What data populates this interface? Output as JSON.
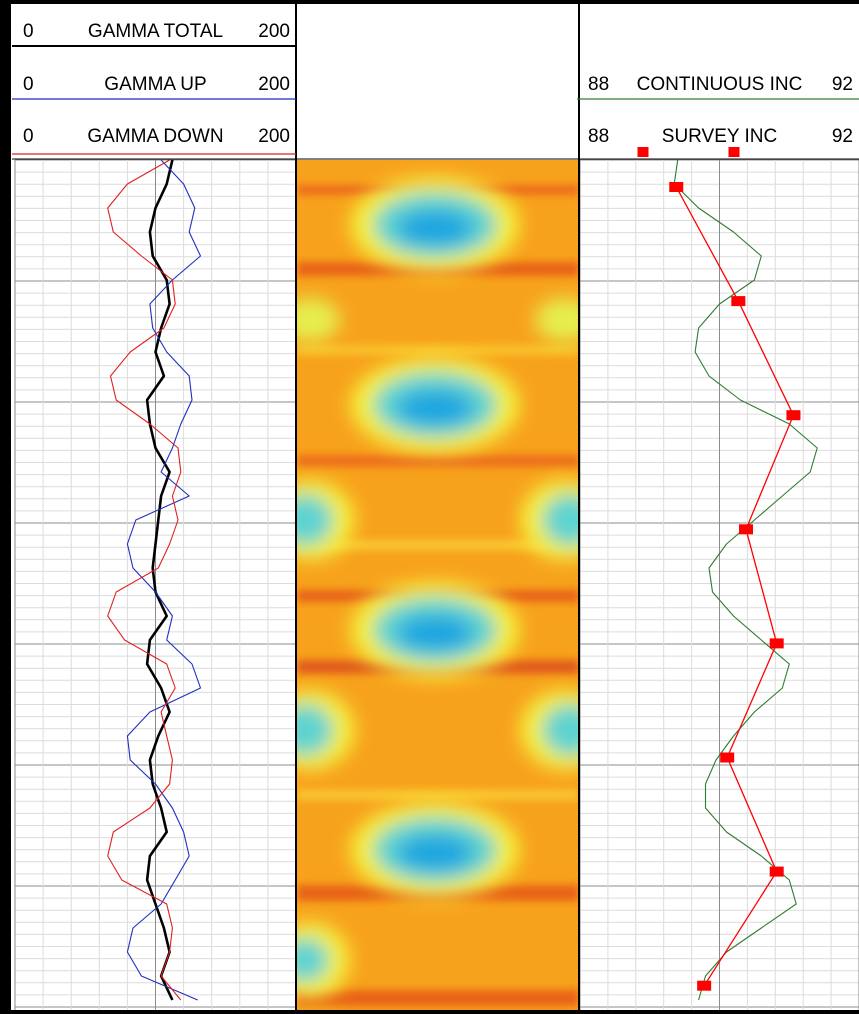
{
  "chart_data": [
    {
      "type": "line",
      "grid": true,
      "series": [
        {
          "name": "GAMMA TOTAL",
          "color": "#000000",
          "xlim": [
            0,
            200
          ],
          "values": [
            112,
            108,
            100,
            96,
            98,
            108,
            110,
            104,
            100,
            106,
            94,
            96,
            100,
            110,
            104,
            102,
            100,
            98,
            100,
            108,
            96,
            94,
            104,
            110,
            102,
            96,
            98,
            104,
            108,
            96,
            94,
            100,
            106,
            110,
            104,
            112
          ]
        },
        {
          "name": "GAMMA UP",
          "color": "#1f2fbf",
          "xlim": [
            0,
            200
          ],
          "values": [
            104,
            120,
            128,
            124,
            132,
            112,
            96,
            98,
            108,
            124,
            126,
            118,
            112,
            104,
            124,
            86,
            80,
            84,
            100,
            112,
            108,
            126,
            132,
            96,
            80,
            82,
            100,
            112,
            120,
            124,
            114,
            104,
            84,
            80,
            90,
            130
          ]
        },
        {
          "name": "GAMMA DOWN",
          "color": "#e02020",
          "xlim": [
            0,
            200
          ],
          "values": [
            110,
            80,
            66,
            70,
            90,
            112,
            114,
            106,
            82,
            68,
            72,
            96,
            116,
            118,
            112,
            116,
            110,
            102,
            72,
            66,
            78,
            108,
            114,
            104,
            108,
            112,
            110,
            96,
            70,
            66,
            76,
            108,
            112,
            110,
            104,
            118
          ]
        }
      ]
    },
    {
      "type": "line",
      "grid": true,
      "series": [
        {
          "name": "CONTINUOUS INC",
          "color": "#2e7d32",
          "xlim": [
            88,
            92
          ],
          "values": [
            89.4,
            89.35,
            89.7,
            90.2,
            90.6,
            90.5,
            90.0,
            89.7,
            89.65,
            89.85,
            90.3,
            91.0,
            91.4,
            91.3,
            90.9,
            90.5,
            90.1,
            89.85,
            89.9,
            90.2,
            90.6,
            91.0,
            90.9,
            90.5,
            90.2,
            89.95,
            89.8,
            89.8,
            90.1,
            90.6,
            91.0,
            91.1,
            90.6,
            90.1,
            89.8,
            89.7
          ]
        },
        {
          "name": "SURVEY INC",
          "color": "#ff0000",
          "xlim": [
            88,
            92
          ],
          "marker": "square",
          "values": [
            89.38,
            90.27,
            91.06,
            90.38,
            90.82,
            90.11,
            90.82,
            89.78
          ]
        }
      ]
    }
  ]
}
